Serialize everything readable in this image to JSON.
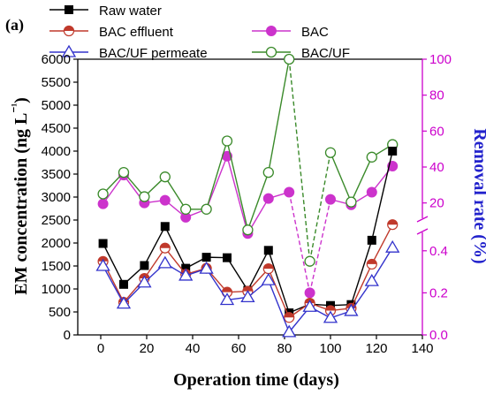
{
  "panel_label": "(a)",
  "colors": {
    "raw": "#000000",
    "bac_eff": "#c0392b",
    "bac": "#cc33cc",
    "bacuf_perm": "#3333cc",
    "bacuf": "#3a8a2a",
    "right_axis": "#cc00cc",
    "right_label": "#2222cc"
  },
  "chart_data": {
    "type": "line",
    "xlabel": "Operation time (days)",
    "ylabel_left": "EM concentration (ng L⁻¹)",
    "ylabel_right": "Removal rate (%)",
    "xlim": [
      -10,
      140
    ],
    "xticks": [
      0,
      20,
      40,
      60,
      80,
      100,
      120,
      140
    ],
    "x": [
      1,
      10,
      19,
      28,
      37,
      46,
      55,
      64,
      73,
      82,
      91,
      100,
      109,
      118,
      127
    ],
    "left_axis": {
      "ylim": [
        0,
        6000
      ],
      "yticks": [
        0,
        500,
        1000,
        1500,
        2000,
        2500,
        3000,
        3500,
        4000,
        4500,
        5000,
        5500,
        6000
      ],
      "series": [
        {
          "name": "Raw water",
          "key": "raw",
          "marker": "square-filled",
          "values": [
            1990,
            1100,
            1510,
            2360,
            1450,
            1690,
            1680,
            970,
            1840,
            480,
            670,
            640,
            660,
            2060,
            4000
          ]
        },
        {
          "name": "BAC effluent",
          "key": "bac_eff",
          "marker": "circle-half",
          "values": [
            1600,
            710,
            1230,
            1890,
            1320,
            1450,
            930,
            950,
            1440,
            380,
            690,
            530,
            580,
            1540,
            2400
          ]
        },
        {
          "name": "BAC/UF permeate",
          "key": "bacuf_perm",
          "marker": "triangle-open",
          "values": [
            1500,
            680,
            1140,
            1560,
            1290,
            1440,
            760,
            820,
            1190,
            60,
            610,
            370,
            520,
            1170,
            1900
          ]
        }
      ]
    },
    "right_axis": {
      "ylim_upper": [
        10,
        100
      ],
      "yticks_upper": [
        20,
        40,
        60,
        80,
        100
      ],
      "ylim_lower": [
        0,
        0.5
      ],
      "yticks_lower": [
        0.0,
        0.2,
        0.4
      ],
      "series": [
        {
          "name": "BAC",
          "key": "bac",
          "marker": "circle-filled",
          "values": [
            19.5,
            35.5,
            20.0,
            21.5,
            12.0,
            16.5,
            46.0,
            3.0,
            22.5,
            26.0,
            0.2,
            22.0,
            19.0,
            26.0,
            40.5
          ]
        },
        {
          "name": "BAC/UF",
          "key": "bacuf",
          "marker": "circle-open",
          "values": [
            25.0,
            37.0,
            23.5,
            34.5,
            16.5,
            16.5,
            54.5,
            5.0,
            37.0,
            100.0,
            0.35,
            48.0,
            20.5,
            45.5,
            52.5
          ]
        }
      ]
    }
  }
}
